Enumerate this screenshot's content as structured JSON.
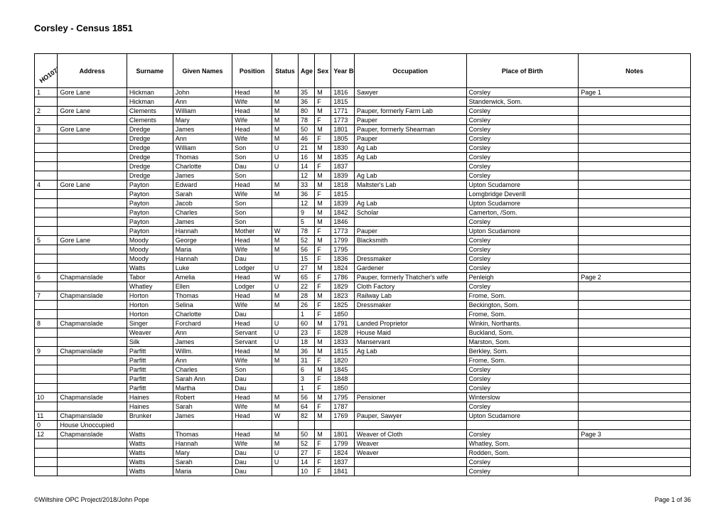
{
  "title": "Corsley - Census 1851",
  "ref_label": "HO107/1843",
  "columns": [
    "",
    "Address",
    "Surname",
    "Given Names",
    "Position",
    "Status",
    "Age",
    "Sex",
    "Year Born",
    "Occupation",
    "Place of Birth",
    "Notes"
  ],
  "rows": [
    [
      "1",
      "Gore Lane",
      "Hickman",
      "John",
      "Head",
      "M",
      "35",
      "M",
      "1816",
      "Sawyer",
      "Corsley",
      "Page 1"
    ],
    [
      "",
      "",
      "Hickman",
      "Ann",
      "Wife",
      "M",
      "36",
      "F",
      "1815",
      "",
      "Standerwick, Som.",
      ""
    ],
    [
      "2",
      "Gore Lane",
      "Clements",
      "William",
      "Head",
      "M",
      "80",
      "M",
      "1771",
      "Pauper, formerly Farm Lab",
      "Corsley",
      ""
    ],
    [
      "",
      "",
      "Clements",
      "Mary",
      "Wife",
      "M",
      "78",
      "F",
      "1773",
      "Pauper",
      "Corsley",
      ""
    ],
    [
      "3",
      "Gore Lane",
      "Dredge",
      "James",
      "Head",
      "M",
      "50",
      "M",
      "1801",
      "Pauper, formerly Shearman",
      "Corsley",
      ""
    ],
    [
      "",
      "",
      "Dredge",
      "Ann",
      "Wife",
      "M",
      "46",
      "F",
      "1805",
      "Pauper",
      "Corsley",
      ""
    ],
    [
      "",
      "",
      "Dredge",
      "William",
      "Son",
      "U",
      "21",
      "M",
      "1830",
      "Ag Lab",
      "Corsley",
      ""
    ],
    [
      "",
      "",
      "Dredge",
      "Thomas",
      "Son",
      "U",
      "16",
      "M",
      "1835",
      "Ag Lab",
      "Corsley",
      ""
    ],
    [
      "",
      "",
      "Dredge",
      "Charlotte",
      "Dau",
      "U",
      "14",
      "F",
      "1837",
      "",
      "Corsley",
      ""
    ],
    [
      "",
      "",
      "Dredge",
      "James",
      "Son",
      "",
      "12",
      "M",
      "1839",
      "Ag Lab",
      "Corsley",
      ""
    ],
    [
      "4",
      "Gore Lane",
      "Payton",
      "Edward",
      "Head",
      "M",
      "33",
      "M",
      "1818",
      "Maltster's Lab",
      "Upton Scudamore",
      ""
    ],
    [
      "",
      "",
      "Payton",
      "Sarah",
      "Wife",
      "M",
      "36",
      "F",
      "1815",
      "",
      "Lomgbridge Deverill",
      ""
    ],
    [
      "",
      "",
      "Payton",
      "Jacob",
      "Son",
      "",
      "12",
      "M",
      "1839",
      "Ag Lab",
      "Upton Scudamore",
      ""
    ],
    [
      "",
      "",
      "Payton",
      "Charles",
      "Son",
      "",
      "9",
      "M",
      "1842",
      "Scholar",
      "Camerton, /Som.",
      ""
    ],
    [
      "",
      "",
      "Payton",
      "James",
      "Son",
      "",
      "5",
      "M",
      "1846",
      "",
      "Corsley",
      ""
    ],
    [
      "",
      "",
      "Payton",
      "Hannah",
      "Mother",
      "W",
      "78",
      "F",
      "1773",
      "Pauper",
      "Upton Scudamore",
      ""
    ],
    [
      "5",
      "Gore Lane",
      "Moody",
      "George",
      "Head",
      "M",
      "52",
      "M",
      "1799",
      "Blacksmith",
      "Corsley",
      ""
    ],
    [
      "",
      "",
      "Moody",
      "Maria",
      "Wife",
      "M",
      "56",
      "F",
      "1795",
      "",
      "Corsley",
      ""
    ],
    [
      "",
      "",
      "Moody",
      "Hannah",
      "Dau",
      "",
      "15",
      "F",
      "1836",
      "Dressmaker",
      "Corsley",
      ""
    ],
    [
      "",
      "",
      "Watts",
      "Luke",
      "Lodger",
      "U",
      "27",
      "M",
      "1824",
      "Gardener",
      "Corsley",
      ""
    ],
    [
      "6",
      "Chapmanslade",
      "Tabor",
      "Amelia",
      "Head",
      "W",
      "65",
      "F",
      "1786",
      "Pauper, formerly Thatcher's wife",
      "Penleigh",
      "Page 2"
    ],
    [
      "",
      "",
      "Whatley",
      "Ellen",
      "Lodger",
      "U",
      "22",
      "F",
      "1829",
      "Cloth Factory",
      "Corsley",
      ""
    ],
    [
      "7",
      "Chapmanslade",
      "Horton",
      "Thomas",
      "Head",
      "M",
      "28",
      "M",
      "1823",
      "Railway Lab",
      "Frome, Som.",
      ""
    ],
    [
      "",
      "",
      "Horton",
      "Selina",
      "Wife",
      "M",
      "26",
      "F",
      "1825",
      "Dressmaker",
      "Beckington, Som.",
      ""
    ],
    [
      "",
      "",
      "Horton",
      "Charlotte",
      "Dau",
      "",
      "1",
      "F",
      "1850",
      "",
      "Frome, Som.",
      ""
    ],
    [
      "8",
      "Chapmanslade",
      "Singer",
      "Forchard",
      "Head",
      "U",
      "60",
      "M",
      "1791",
      "Landed Proprietor",
      "Winkin, Northants.",
      ""
    ],
    [
      "",
      "",
      "Weaver",
      "Ann",
      "Servant",
      "U",
      "23",
      "F",
      "1828",
      "House Maid",
      "Buckland, Som.",
      ""
    ],
    [
      "",
      "",
      "Silk",
      "James",
      "Servant",
      "U",
      "18",
      "M",
      "1833",
      "Manservant",
      "Marston, Som.",
      ""
    ],
    [
      "9",
      "Chapmanslade",
      "Parfitt",
      "Willm.",
      "Head",
      "M",
      "36",
      "M",
      "1815",
      "Ag Lab",
      "Berkley, Som.",
      ""
    ],
    [
      "",
      "",
      "Parfitt",
      "Ann",
      "Wife",
      "M",
      "31",
      "F",
      "1820",
      "",
      "Frome, Som.",
      ""
    ],
    [
      "",
      "",
      "Parfitt",
      "Charles",
      "Son",
      "",
      "6",
      "M",
      "1845",
      "",
      "Corsley",
      ""
    ],
    [
      "",
      "",
      "Parfitt",
      "Sarah Ann",
      "Dau",
      "",
      "3",
      "F",
      "1848",
      "",
      "Corsley",
      ""
    ],
    [
      "",
      "",
      "Parfitt",
      "Martha",
      "Dau",
      "",
      "1",
      "F",
      "1850",
      "",
      "Corsley",
      ""
    ],
    [
      "10",
      "Chapmanslade",
      "Haines",
      "Robert",
      "Head",
      "M",
      "56",
      "M",
      "1795",
      "Pensioner",
      "Winterslow",
      ""
    ],
    [
      "",
      "",
      "Haines",
      "Sarah",
      "Wife",
      "M",
      "64",
      "F",
      "1787",
      "",
      "Corsley",
      ""
    ],
    [
      "11",
      "Chapmanslade",
      "Brunker",
      "James",
      "Head",
      "W",
      "82",
      "M",
      "1769",
      "Pauper, Sawyer",
      "Upton Scudamore",
      ""
    ],
    [
      "0",
      "House Unoccupied",
      "",
      "",
      "",
      "",
      "",
      "",
      "",
      "",
      "",
      ""
    ],
    [
      "12",
      "Chapmanslade",
      "Watts",
      "Thomas",
      "Head",
      "M",
      "50",
      "M",
      "1801",
      "Weaver of Cloth",
      "Corsley",
      "Page 3"
    ],
    [
      "",
      "",
      "Watts",
      "Hannah",
      "Wife",
      "M",
      "52",
      "F",
      "1799",
      "Weaver",
      "Whatley, Som.",
      ""
    ],
    [
      "",
      "",
      "Watts",
      "Mary",
      "Dau",
      "U",
      "27",
      "F",
      "1824",
      "Weaver",
      "Rodden, Som.",
      ""
    ],
    [
      "",
      "",
      "Watts",
      "Sarah",
      "Dau",
      "U",
      "14",
      "F",
      "1837",
      "",
      "Corsley",
      ""
    ],
    [
      "",
      "",
      "Watts",
      "Maria",
      "Dau",
      "",
      "10",
      "F",
      "1841",
      "",
      "Corsley",
      ""
    ]
  ],
  "footer_left": "©Wiltshire OPC Project/2018/John Pope",
  "footer_right": "Page 1 of 36"
}
